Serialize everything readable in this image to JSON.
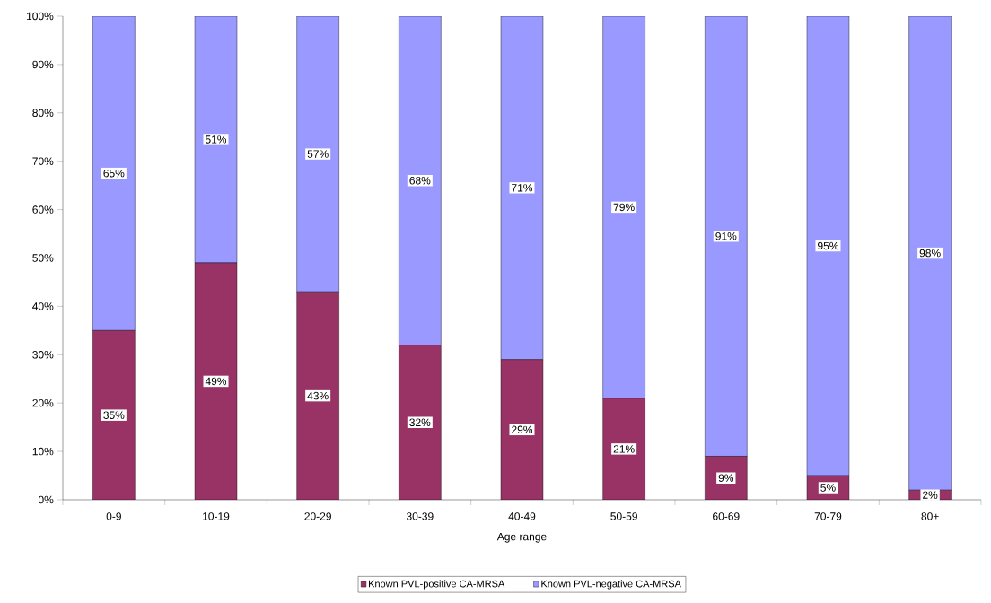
{
  "chart_data": {
    "type": "bar",
    "stacked": true,
    "xlabel": "Age range",
    "categories": [
      "0-9",
      "10-19",
      "20-29",
      "30-39",
      "40-49",
      "50-59",
      "60-69",
      "70-79",
      "80+"
    ],
    "series": [
      {
        "name": "Known PVL-positive CA-MRSA",
        "color": "#993366",
        "values": [
          35,
          49,
          43,
          32,
          29,
          21,
          9,
          5,
          2
        ],
        "value_labels": [
          "35%",
          "49%",
          "43%",
          "32%",
          "29%",
          "21%",
          "9%",
          "5%",
          "2%"
        ]
      },
      {
        "name": "Known PVL-negative CA-MRSA",
        "color": "#9999ff",
        "values": [
          65,
          51,
          57,
          68,
          71,
          79,
          91,
          95,
          98
        ],
        "value_labels": [
          "65%",
          "51%",
          "57%",
          "68%",
          "71%",
          "79%",
          "91%",
          "95%",
          "98%"
        ]
      }
    ],
    "ylim": [
      0,
      100
    ],
    "yticks": [
      {
        "value": 0,
        "label": "0%"
      },
      {
        "value": 10,
        "label": "10%"
      },
      {
        "value": 20,
        "label": "20%"
      },
      {
        "value": 30,
        "label": "30%"
      },
      {
        "value": 40,
        "label": "40%"
      },
      {
        "value": 50,
        "label": "50%"
      },
      {
        "value": 60,
        "label": "60%"
      },
      {
        "value": 70,
        "label": "70%"
      },
      {
        "value": 80,
        "label": "80%"
      },
      {
        "value": 90,
        "label": "90%"
      },
      {
        "value": 100,
        "label": "100%"
      }
    ],
    "grid": false,
    "legend": "bottom"
  }
}
